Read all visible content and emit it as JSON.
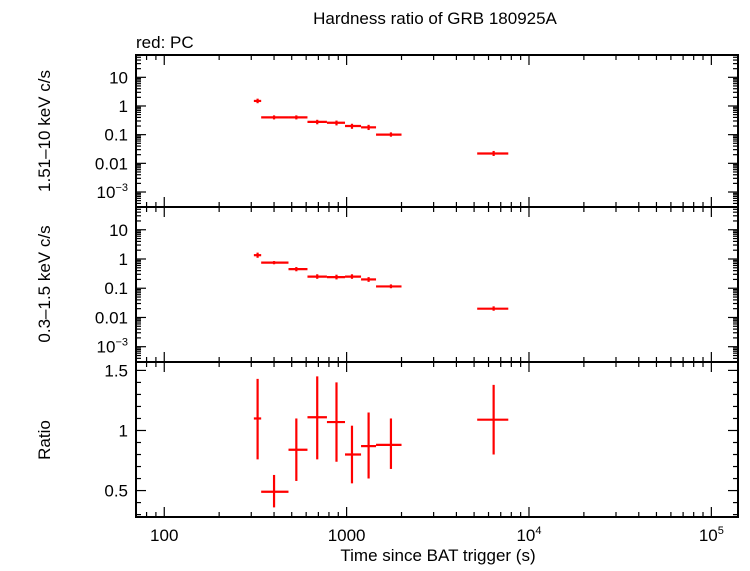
{
  "title": "Hardness ratio of GRB 180925A",
  "subtitle": "red: PC",
  "xlabel": "Time since BAT trigger (s)",
  "colors": {
    "data": "#ff0000",
    "axes": "#000000",
    "background": "#ffffff"
  },
  "chart_data": [
    {
      "type": "scatter",
      "panel": "hard",
      "ylabel": "1.51–10 keV c/s",
      "xscale": "log",
      "yscale": "log",
      "xlim": [
        70,
        140000
      ],
      "ylim": [
        0.0003,
        60
      ],
      "yticks": [
        {
          "value": 10,
          "label": "10"
        },
        {
          "value": 1,
          "label": "1"
        },
        {
          "value": 0.1,
          "label": "0.1"
        },
        {
          "value": 0.01,
          "label": "0.01"
        },
        {
          "value": 0.001,
          "label": "10",
          "sup": "−3"
        }
      ],
      "series": [
        {
          "color": "#ff0000",
          "points": [
            {
              "x": 325,
              "xlo": 310,
              "xhi": 340,
              "y": 1.5,
              "ylo": 1.25,
              "yhi": 1.8
            },
            {
              "x": 400,
              "xlo": 340,
              "xhi": 480,
              "y": 0.4,
              "ylo": 0.34,
              "yhi": 0.47
            },
            {
              "x": 530,
              "xlo": 480,
              "xhi": 610,
              "y": 0.4,
              "ylo": 0.34,
              "yhi": 0.47
            },
            {
              "x": 690,
              "xlo": 610,
              "xhi": 780,
              "y": 0.28,
              "ylo": 0.23,
              "yhi": 0.33
            },
            {
              "x": 880,
              "xlo": 780,
              "xhi": 980,
              "y": 0.26,
              "ylo": 0.21,
              "yhi": 0.31
            },
            {
              "x": 1070,
              "xlo": 980,
              "xhi": 1200,
              "y": 0.2,
              "ylo": 0.16,
              "yhi": 0.24
            },
            {
              "x": 1320,
              "xlo": 1200,
              "xhi": 1450,
              "y": 0.18,
              "ylo": 0.145,
              "yhi": 0.22
            },
            {
              "x": 1750,
              "xlo": 1450,
              "xhi": 2000,
              "y": 0.1,
              "ylo": 0.085,
              "yhi": 0.12
            },
            {
              "x": 6400,
              "xlo": 5200,
              "xhi": 7700,
              "y": 0.022,
              "ylo": 0.018,
              "yhi": 0.027
            }
          ]
        }
      ]
    },
    {
      "type": "scatter",
      "panel": "soft",
      "ylabel": "0.3–1.5 keV c/s",
      "xscale": "log",
      "yscale": "log",
      "xlim": [
        70,
        140000
      ],
      "ylim": [
        0.0003,
        60
      ],
      "yticks": [
        {
          "value": 10,
          "label": "10"
        },
        {
          "value": 1,
          "label": "1"
        },
        {
          "value": 0.1,
          "label": "0.1"
        },
        {
          "value": 0.01,
          "label": "0.01"
        },
        {
          "value": 0.001,
          "label": "10",
          "sup": "−3"
        }
      ],
      "series": [
        {
          "color": "#ff0000",
          "points": [
            {
              "x": 325,
              "xlo": 310,
              "xhi": 340,
              "y": 1.35,
              "ylo": 1.1,
              "yhi": 1.65
            },
            {
              "x": 400,
              "xlo": 340,
              "xhi": 480,
              "y": 0.75,
              "ylo": 0.66,
              "yhi": 0.85
            },
            {
              "x": 530,
              "xlo": 480,
              "xhi": 610,
              "y": 0.45,
              "ylo": 0.38,
              "yhi": 0.53
            },
            {
              "x": 690,
              "xlo": 610,
              "xhi": 780,
              "y": 0.25,
              "ylo": 0.21,
              "yhi": 0.3
            },
            {
              "x": 880,
              "xlo": 780,
              "xhi": 980,
              "y": 0.24,
              "ylo": 0.2,
              "yhi": 0.29
            },
            {
              "x": 1070,
              "xlo": 980,
              "xhi": 1200,
              "y": 0.25,
              "ylo": 0.21,
              "yhi": 0.3
            },
            {
              "x": 1320,
              "xlo": 1200,
              "xhi": 1450,
              "y": 0.2,
              "ylo": 0.165,
              "yhi": 0.24
            },
            {
              "x": 1750,
              "xlo": 1450,
              "xhi": 2000,
              "y": 0.115,
              "ylo": 0.1,
              "yhi": 0.135
            },
            {
              "x": 6400,
              "xlo": 5200,
              "xhi": 7700,
              "y": 0.02,
              "ylo": 0.017,
              "yhi": 0.024
            }
          ]
        }
      ]
    },
    {
      "type": "scatter",
      "panel": "ratio",
      "ylabel": "Ratio",
      "xscale": "log",
      "yscale": "linear",
      "xlim": [
        70,
        140000
      ],
      "ylim": [
        0.28,
        1.57
      ],
      "yticks": [
        {
          "value": 1.5,
          "label": "1.5"
        },
        {
          "value": 1,
          "label": "1"
        },
        {
          "value": 0.5,
          "label": "0.5"
        }
      ],
      "xticks": [
        {
          "value": 100,
          "label": "100"
        },
        {
          "value": 1000,
          "label": "1000"
        },
        {
          "value": 10000,
          "label": "10",
          "sup": "4"
        },
        {
          "value": 100000,
          "label": "10",
          "sup": "5"
        }
      ],
      "series": [
        {
          "color": "#ff0000",
          "points": [
            {
              "x": 325,
              "xlo": 310,
              "xhi": 340,
              "y": 1.1,
              "ylo": 0.76,
              "yhi": 1.43
            },
            {
              "x": 400,
              "xlo": 340,
              "xhi": 480,
              "y": 0.49,
              "ylo": 0.36,
              "yhi": 0.63
            },
            {
              "x": 530,
              "xlo": 480,
              "xhi": 610,
              "y": 0.84,
              "ylo": 0.58,
              "yhi": 1.1
            },
            {
              "x": 690,
              "xlo": 610,
              "xhi": 780,
              "y": 1.11,
              "ylo": 0.76,
              "yhi": 1.45
            },
            {
              "x": 880,
              "xlo": 780,
              "xhi": 980,
              "y": 1.07,
              "ylo": 0.74,
              "yhi": 1.4
            },
            {
              "x": 1070,
              "xlo": 980,
              "xhi": 1200,
              "y": 0.8,
              "ylo": 0.56,
              "yhi": 1.04
            },
            {
              "x": 1320,
              "xlo": 1200,
              "xhi": 1450,
              "y": 0.87,
              "ylo": 0.6,
              "yhi": 1.15
            },
            {
              "x": 1750,
              "xlo": 1450,
              "xhi": 2000,
              "y": 0.88,
              "ylo": 0.68,
              "yhi": 1.1
            },
            {
              "x": 6400,
              "xlo": 5200,
              "xhi": 7700,
              "y": 1.09,
              "ylo": 0.8,
              "yhi": 1.38
            }
          ]
        }
      ]
    }
  ]
}
